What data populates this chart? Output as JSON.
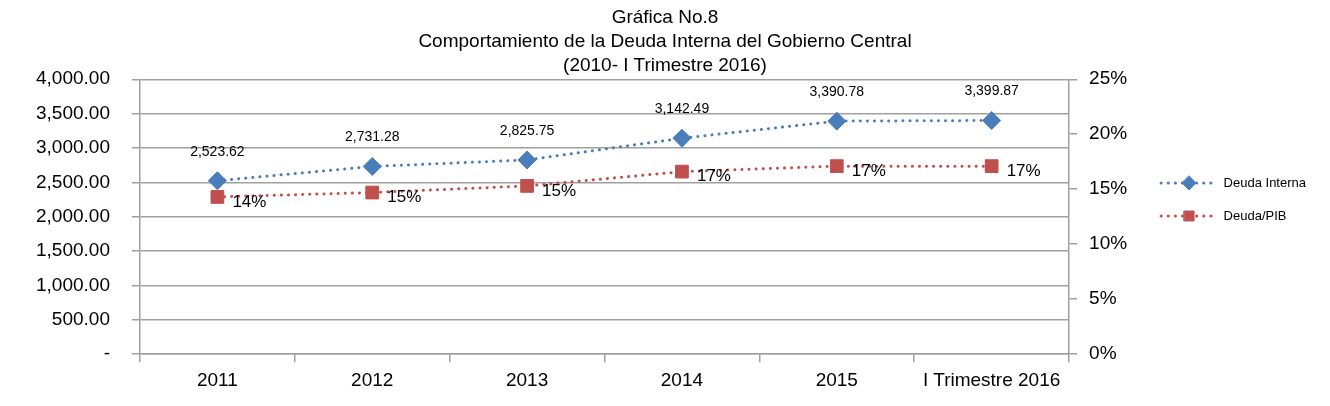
{
  "chart_data": {
    "type": "line",
    "title": "Gráfica No.8",
    "subtitle": "Comportamiento de la Deuda Interna del Gobierno Central\n(2010- I Trimestre 2016)",
    "categories": [
      "2011",
      "2012",
      "2013",
      "2014",
      "2015",
      "I Trimestre 2016"
    ],
    "series": [
      {
        "name": "Deuda Interna",
        "color": "#4a7ebb",
        "marker": "diamond",
        "values": [
          2523.62,
          2731.28,
          2825.75,
          3142.49,
          3390.78,
          3399.87
        ],
        "value_labels": [
          "2,523.62",
          "2,731.28",
          "2,825.75",
          "3,142.49",
          "3,390.78",
          "3,399.87"
        ]
      },
      {
        "name": "Deuda/PIB",
        "color": "#c0504d",
        "marker": "square",
        "axis": "y2",
        "values": [
          14.3,
          14.7,
          15.3,
          16.6,
          17.1,
          17.1
        ],
        "value_labels": [
          "14%",
          "15%",
          "15%",
          "17%",
          "17%",
          "17%"
        ]
      }
    ],
    "ylim": [
      0,
      4000
    ],
    "yticks": [
      {
        "value": 0,
        "label": "-"
      },
      {
        "value": 500,
        "label": "500.00"
      },
      {
        "value": 1000,
        "label": "1,000.00"
      },
      {
        "value": 1500,
        "label": "1,500.00"
      },
      {
        "value": 2000,
        "label": "2,000.00"
      },
      {
        "value": 2500,
        "label": "2,500.00"
      },
      {
        "value": 3000,
        "label": "3,000.00"
      },
      {
        "value": 3500,
        "label": "3,500.00"
      },
      {
        "value": 4000,
        "label": "4,000.00"
      }
    ],
    "y2lim": [
      0,
      25
    ],
    "y2ticks": [
      {
        "value": 0,
        "label": "0%"
      },
      {
        "value": 5,
        "label": "5%"
      },
      {
        "value": 10,
        "label": "10%"
      },
      {
        "value": 15,
        "label": "15%"
      },
      {
        "value": 20,
        "label": "20%"
      },
      {
        "value": 25,
        "label": "25%"
      }
    ],
    "grid": "y",
    "legend": "right",
    "line_style": "dotted"
  }
}
